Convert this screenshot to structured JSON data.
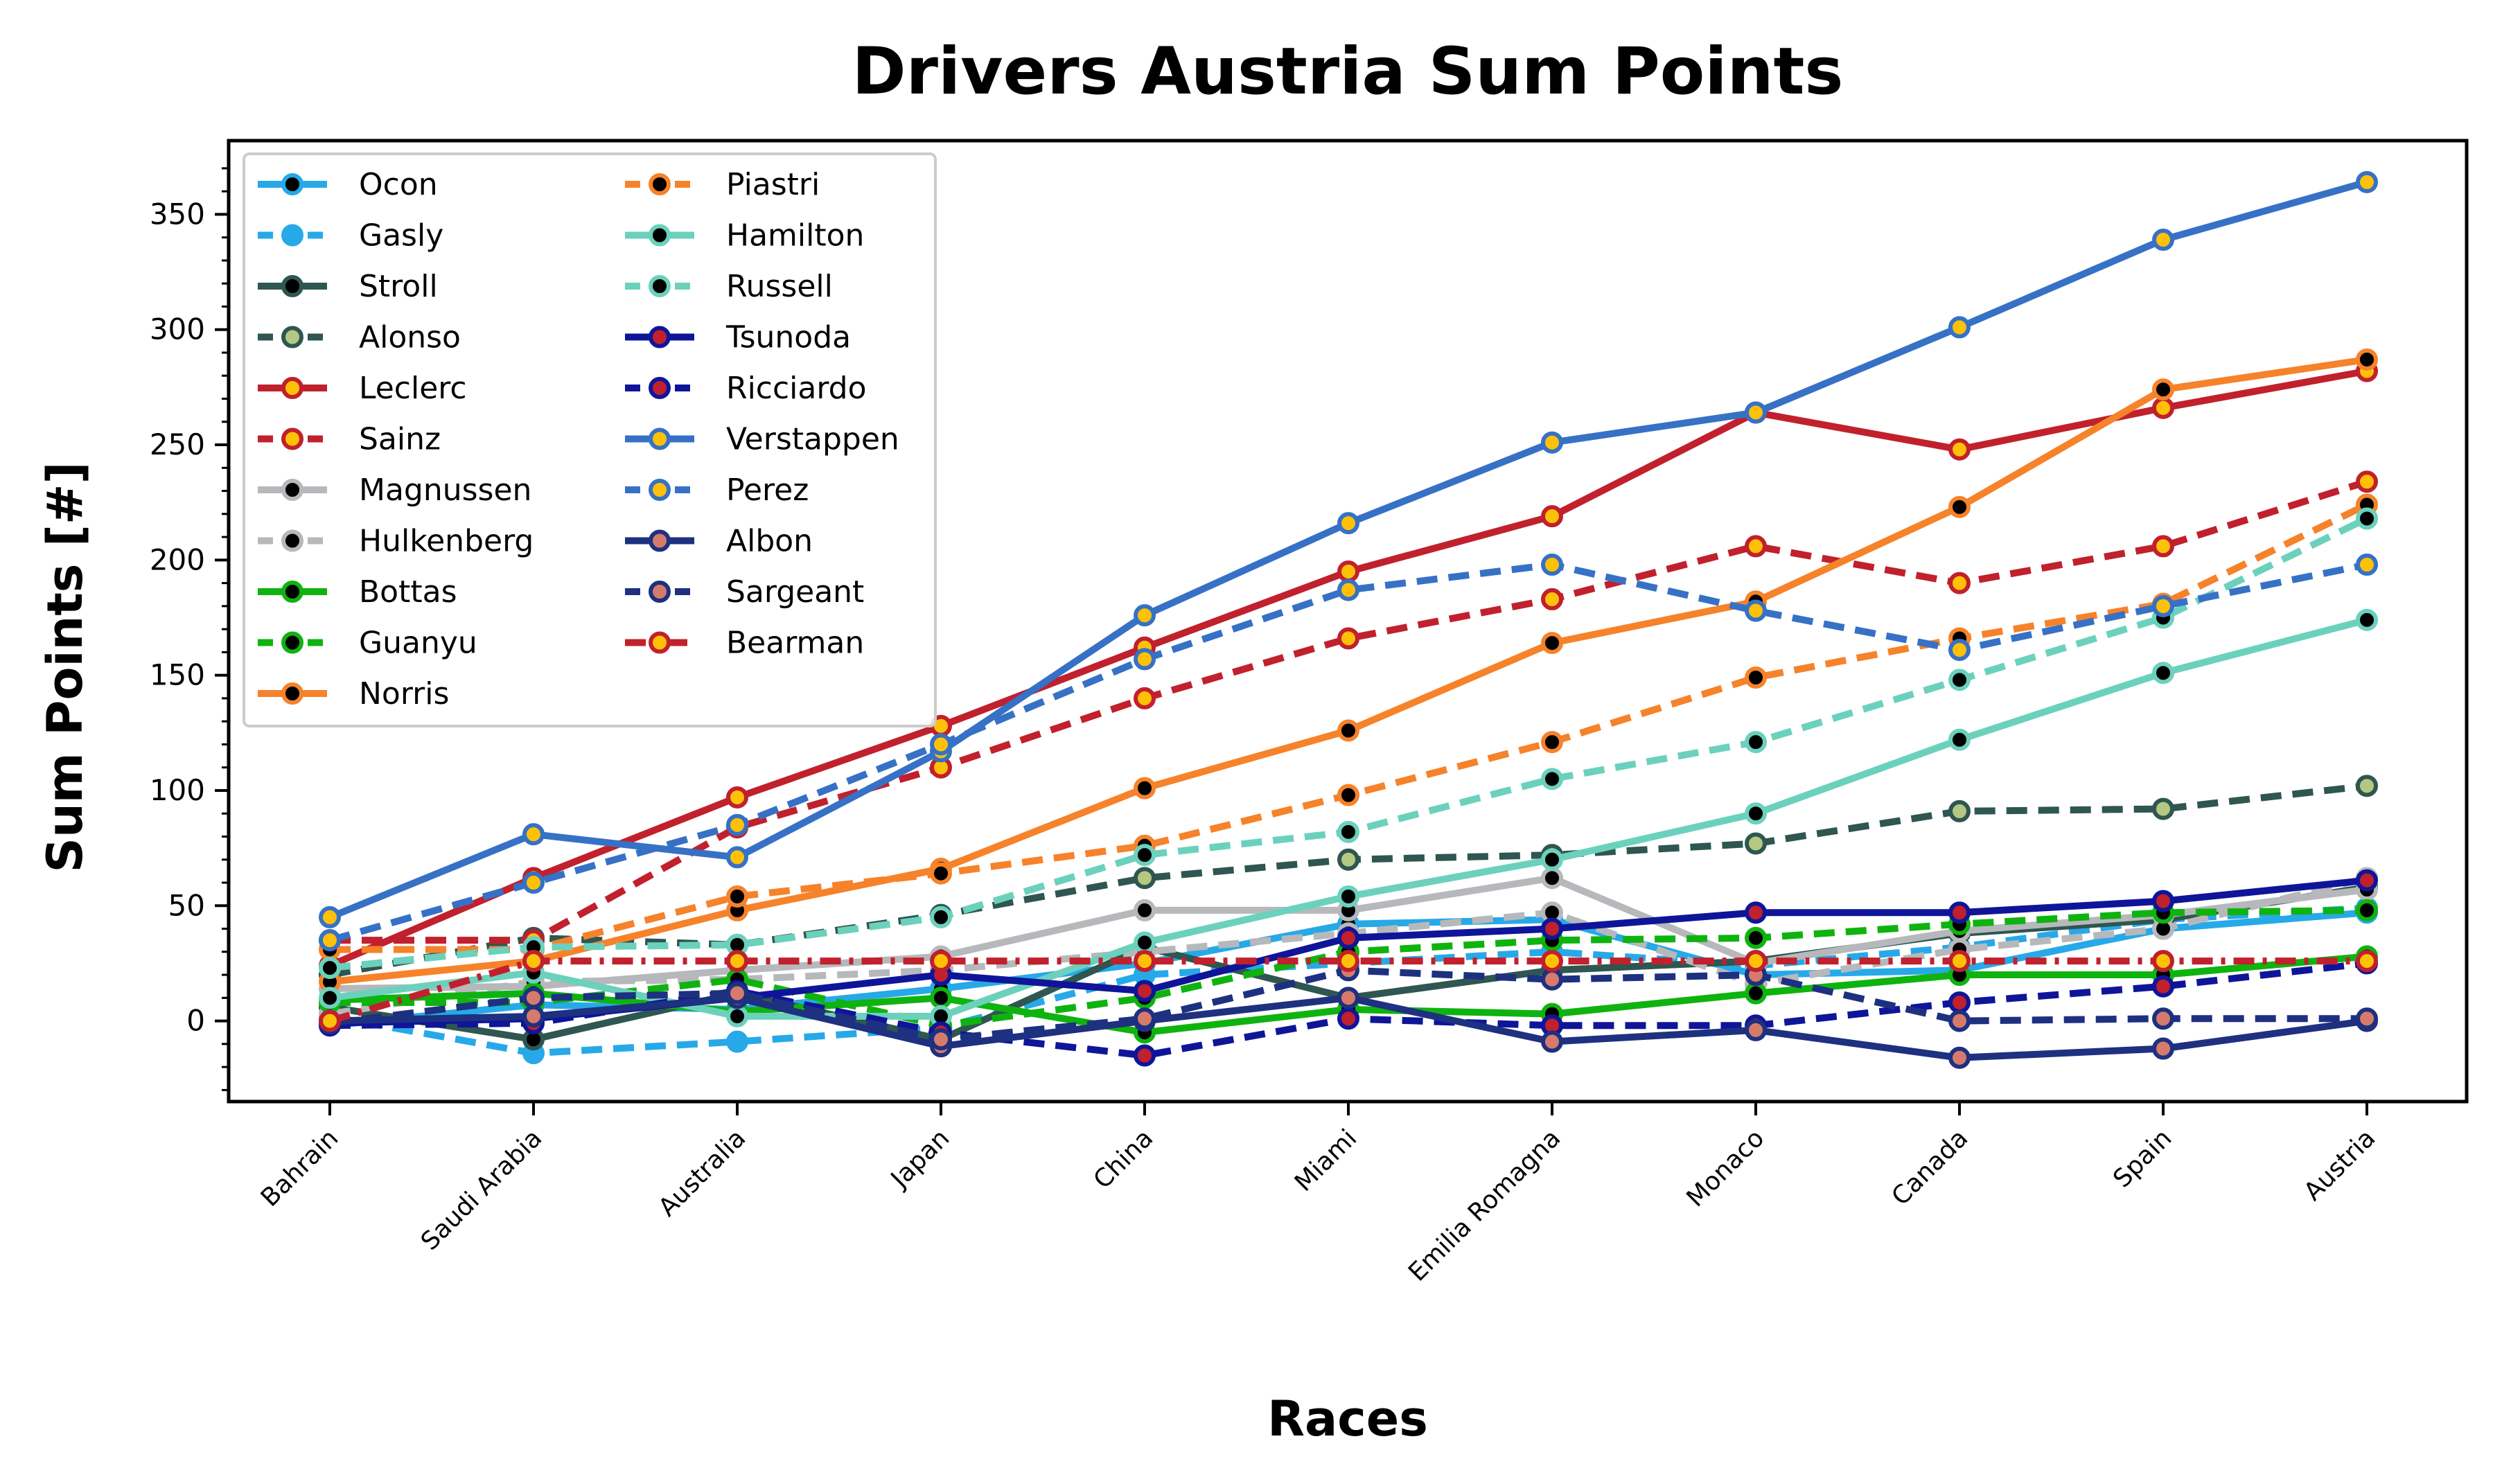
{
  "chart_data": {
    "type": "line",
    "title": "Drivers Austria Sum Points",
    "xlabel": "Races",
    "ylabel": "Sum Points [#]",
    "categories": [
      "Bahrain",
      "Saudi Arabia",
      "Australia",
      "Japan",
      "China",
      "Miami",
      "Emilia Romagna",
      "Monaco",
      "Canada",
      "Spain",
      "Austria"
    ],
    "ylim": [
      -35,
      382
    ],
    "yticks": [
      0,
      50,
      100,
      150,
      200,
      250,
      300,
      350
    ],
    "grid": false,
    "legend_position": "top-left",
    "legend_columns": 2,
    "series": [
      {
        "name": "Ocon",
        "color": "#27a9e8",
        "dash": "solid",
        "marker_face": "#000000",
        "values": [
          -2,
          7,
          5,
          14,
          25,
          42,
          44,
          20,
          22,
          40,
          47
        ]
      },
      {
        "name": "Gasly",
        "color": "#27a9e8",
        "dash": "dashed",
        "marker_face": "#27a9e8",
        "values": [
          2,
          -14,
          -9,
          -3,
          20,
          25,
          30,
          24,
          32,
          44,
          49
        ]
      },
      {
        "name": "Stroll",
        "color": "#2f5651",
        "dash": "solid",
        "marker_face": "#000000",
        "values": [
          6,
          -8,
          12,
          -8,
          32,
          10,
          22,
          26,
          38,
          44,
          58
        ]
      },
      {
        "name": "Alonso",
        "color": "#2f5651",
        "dash": "dashed",
        "marker_face": "#b5c882",
        "values": [
          20,
          36,
          33,
          46,
          62,
          70,
          72,
          77,
          91,
          92,
          102
        ]
      },
      {
        "name": "Leclerc",
        "color": "#c1202d",
        "dash": "solid",
        "marker_face": "#ffc107",
        "values": [
          24,
          62,
          97,
          128,
          162,
          195,
          219,
          264,
          248,
          266,
          282
        ]
      },
      {
        "name": "Sainz",
        "color": "#c1202d",
        "dash": "dashed",
        "marker_face": "#ffc107",
        "values": [
          35,
          35,
          84,
          110,
          140,
          166,
          183,
          206,
          190,
          206,
          234
        ]
      },
      {
        "name": "Magnussen",
        "color": "#b7b8bb",
        "dash": "solid",
        "marker_face": "#000000",
        "values": [
          14,
          15,
          22,
          28,
          48,
          48,
          62,
          25,
          39,
          46,
          57
        ]
      },
      {
        "name": "Hulkenberg",
        "color": "#b7b8bb",
        "dash": "dashed",
        "marker_face": "#000000",
        "values": [
          3,
          17,
          18,
          22,
          30,
          38,
          47,
          16,
          31,
          40,
          62
        ]
      },
      {
        "name": "Bottas",
        "color": "#0fb30f",
        "dash": "solid",
        "marker_face": "#000000",
        "values": [
          9,
          12,
          4,
          10,
          -5,
          5,
          3,
          12,
          20,
          20,
          28
        ]
      },
      {
        "name": "Guanyu",
        "color": "#0fb30f",
        "dash": "dashed",
        "marker_face": "#000000",
        "values": [
          8,
          8,
          18,
          -2,
          10,
          30,
          35,
          36,
          42,
          47,
          48
        ]
      },
      {
        "name": "Norris",
        "color": "#f6822a",
        "dash": "solid",
        "marker_face": "#000000",
        "values": [
          17,
          26,
          48,
          66,
          101,
          126,
          164,
          182,
          223,
          274,
          287
        ]
      },
      {
        "name": "Piastri",
        "color": "#f6822a",
        "dash": "dashed",
        "marker_face": "#000000",
        "values": [
          31,
          31,
          54,
          64,
          76,
          98,
          121,
          149,
          166,
          181,
          224
        ]
      },
      {
        "name": "Hamilton",
        "color": "#6bd1bd",
        "dash": "solid",
        "marker_face": "#000000",
        "values": [
          10,
          21,
          2,
          2,
          34,
          54,
          70,
          90,
          122,
          151,
          174
        ]
      },
      {
        "name": "Russell",
        "color": "#6bd1bd",
        "dash": "dashed",
        "marker_face": "#000000",
        "values": [
          23,
          32,
          33,
          45,
          72,
          82,
          105,
          121,
          148,
          175,
          218
        ]
      },
      {
        "name": "Tsunoda",
        "color": "#0f1599",
        "dash": "solid",
        "marker_face": "#c1202d",
        "values": [
          -1,
          1,
          10,
          20,
          13,
          36,
          40,
          47,
          47,
          52,
          61
        ]
      },
      {
        "name": "Ricciardo",
        "color": "#0f1599",
        "dash": "dashed",
        "marker_face": "#c1202d",
        "values": [
          -2,
          -1,
          13,
          -5,
          -15,
          1,
          -2,
          -2,
          8,
          15,
          25
        ]
      },
      {
        "name": "Verstappen",
        "color": "#3671c6",
        "dash": "solid",
        "marker_face": "#ffc107",
        "values": [
          45,
          81,
          71,
          117,
          176,
          216,
          251,
          264,
          301,
          339,
          364
        ]
      },
      {
        "name": "Perez",
        "color": "#3671c6",
        "dash": "dashed",
        "marker_face": "#ffc107",
        "values": [
          35,
          60,
          85,
          120,
          157,
          187,
          198,
          178,
          161,
          180,
          198
        ]
      },
      {
        "name": "Albon",
        "color": "#1e3080",
        "dash": "solid",
        "marker_face": "#d67b6c",
        "values": [
          0,
          2,
          10,
          -11,
          0,
          10,
          -9,
          -4,
          -16,
          -12,
          0
        ]
      },
      {
        "name": "Sargeant",
        "color": "#1e3080",
        "dash": "dashed",
        "marker_face": "#d67b6c",
        "values": [
          -1,
          10,
          12,
          -8,
          1,
          22,
          18,
          20,
          0,
          1,
          1
        ]
      },
      {
        "name": "Bearman",
        "color": "#c1202d",
        "dash": "dashdot",
        "marker_face": "#ffc107",
        "values": [
          0,
          26,
          26,
          26,
          26,
          26,
          26,
          26,
          26,
          26,
          26
        ]
      }
    ]
  }
}
